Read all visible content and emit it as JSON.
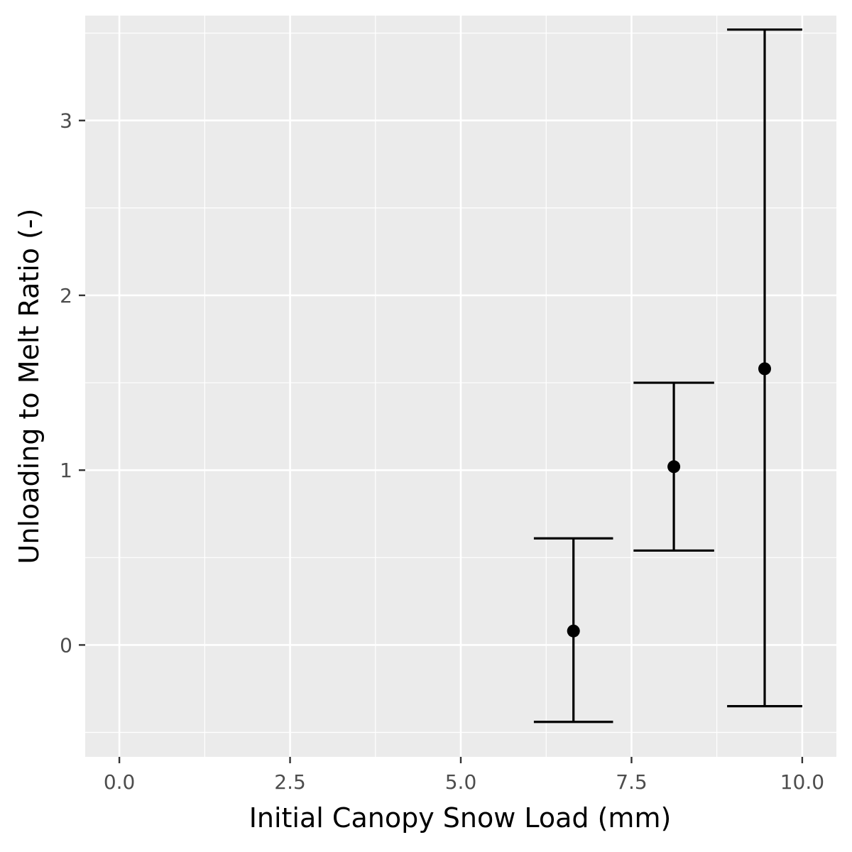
{
  "chart_data": {
    "type": "scatter",
    "subtype": "errorbar",
    "title": "",
    "xlabel": "Initial Canopy Snow Load (mm)",
    "ylabel": "Unloading to Melt Ratio (-)",
    "xlim": [
      -0.5,
      10.5
    ],
    "ylim": [
      -0.64,
      3.6
    ],
    "x_ticks": [
      0.0,
      2.5,
      5.0,
      7.5,
      10.0
    ],
    "x_tick_labels": [
      "0.0",
      "2.5",
      "5.0",
      "7.5",
      "10.0"
    ],
    "y_ticks": [
      0,
      1,
      2,
      3
    ],
    "y_tick_labels": [
      "0",
      "1",
      "2",
      "3"
    ],
    "grid": true,
    "legend": "none",
    "points": [
      {
        "x": 6.65,
        "y": 0.08,
        "ymin": -0.44,
        "ymax": 0.61,
        "xmin": 6.07,
        "xmax": 7.23
      },
      {
        "x": 8.12,
        "y": 1.02,
        "ymin": 0.54,
        "ymax": 1.5,
        "xmin": 7.53,
        "xmax": 8.71
      },
      {
        "x": 9.45,
        "y": 1.58,
        "ymin": -0.35,
        "ymax": 3.52,
        "xmin": 8.9,
        "xmax": 10.0
      }
    ],
    "colors": {
      "panel_bg": "#ebebeb",
      "grid": "#ffffff",
      "mark": "#000000",
      "tick_text": "#4d4d4d"
    }
  }
}
